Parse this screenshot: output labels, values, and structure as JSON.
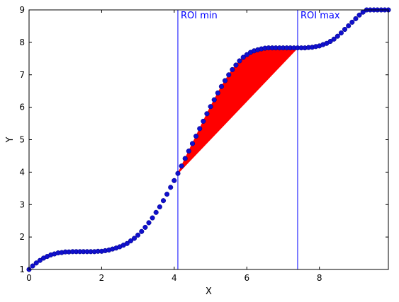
{
  "chart_data": {
    "type": "scatter",
    "title": "",
    "xlabel": "X",
    "ylabel": "Y",
    "xlim": [
      0,
      9.9
    ],
    "ylim": [
      1,
      9
    ],
    "x_ticks": [
      "0",
      "2",
      "4",
      "6",
      "8"
    ],
    "y_ticks": [
      "1",
      "2",
      "3",
      "4",
      "5",
      "6",
      "7",
      "8",
      "9"
    ],
    "grid": false,
    "colors": {
      "points": "#1010cc",
      "roi_lines": "#0000ff",
      "fill": "#ff0000"
    },
    "roi": {
      "min": {
        "x": 4.1,
        "label": "ROI min"
      },
      "max": {
        "x": 7.4,
        "label": "ROI max"
      }
    },
    "series": [
      {
        "x": [
          0.0,
          0.1,
          0.2,
          0.3,
          0.4,
          0.5,
          0.6,
          0.7,
          0.8,
          0.9,
          1.0,
          1.1,
          1.2,
          1.3,
          1.4,
          1.5,
          1.6,
          1.7,
          1.8,
          1.9,
          2.0,
          2.1,
          2.2,
          2.3,
          2.4,
          2.5,
          2.6,
          2.7,
          2.8,
          2.9,
          3.0,
          3.1,
          3.2,
          3.3,
          3.4,
          3.5,
          3.6,
          3.7,
          3.8,
          3.9,
          4.0,
          4.1,
          4.2,
          4.3,
          4.4,
          4.5,
          4.6,
          4.7,
          4.8,
          4.9,
          5.0,
          5.1,
          5.2,
          5.3,
          5.4,
          5.5,
          5.6,
          5.7,
          5.8,
          5.9,
          6.0,
          6.1,
          6.2,
          6.3,
          6.4,
          6.5,
          6.6,
          6.7,
          6.8,
          6.9,
          7.0,
          7.1,
          7.2,
          7.3,
          7.4,
          7.5,
          7.6,
          7.7,
          7.8,
          7.9,
          8.0,
          8.1,
          8.2,
          8.3,
          8.4,
          8.5,
          8.6,
          8.7,
          8.8,
          8.9,
          9.0,
          9.1,
          9.2,
          9.3,
          9.4,
          9.5,
          9.6,
          9.7,
          9.8,
          9.9
        ],
        "y": [
          1.0,
          1.11,
          1.2,
          1.28,
          1.35,
          1.4,
          1.45,
          1.48,
          1.51,
          1.52,
          1.54,
          1.54,
          1.55,
          1.55,
          1.55,
          1.55,
          1.55,
          1.55,
          1.55,
          1.56,
          1.56,
          1.58,
          1.6,
          1.63,
          1.66,
          1.7,
          1.75,
          1.8,
          1.88,
          1.96,
          2.06,
          2.17,
          2.3,
          2.44,
          2.59,
          2.76,
          2.93,
          3.12,
          3.32,
          3.53,
          3.74,
          3.96,
          4.19,
          4.42,
          4.65,
          4.88,
          5.11,
          5.34,
          5.57,
          5.8,
          6.02,
          6.23,
          6.44,
          6.64,
          6.82,
          7.0,
          7.16,
          7.3,
          7.43,
          7.54,
          7.62,
          7.69,
          7.74,
          7.77,
          7.8,
          7.82,
          7.83,
          7.83,
          7.83,
          7.83,
          7.83,
          7.83,
          7.83,
          7.83,
          7.83,
          7.83,
          7.83,
          7.84,
          7.85,
          7.87,
          7.89,
          7.93,
          7.97,
          8.03,
          8.1,
          8.19,
          8.29,
          8.4,
          8.51,
          8.62,
          8.73,
          8.84,
          8.93,
          9.0,
          9.07,
          9.13,
          9.18,
          9.24,
          9.3,
          9.37
        ]
      }
    ]
  }
}
